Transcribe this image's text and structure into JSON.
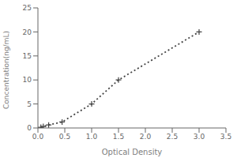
{
  "chart_data": {
    "type": "line",
    "x": [
      0.055,
      0.1,
      0.2,
      0.45,
      1.0,
      1.5,
      3.0
    ],
    "values": [
      0.156,
      0.312,
      0.625,
      1.25,
      5.0,
      10.0,
      20.0
    ],
    "xlabel": "Optical Density",
    "ylabel": "Concentration(ng/mL)",
    "xlim": [
      0,
      3.5
    ],
    "ylim": [
      0,
      25
    ],
    "xticks": [
      {
        "value": 0,
        "label": "0.0"
      },
      0.5,
      {
        "value": 1.0,
        "label": "1.0"
      },
      1.5,
      {
        "value": 2.0,
        "label": "2.0"
      },
      2.5,
      {
        "value": 3.0,
        "label": "3.0"
      },
      3.5
    ],
    "yticks": [
      0,
      5,
      10,
      15,
      20,
      25
    ],
    "color": "#444444",
    "marker": "plus",
    "line_style": "dotted",
    "grid": false
  }
}
